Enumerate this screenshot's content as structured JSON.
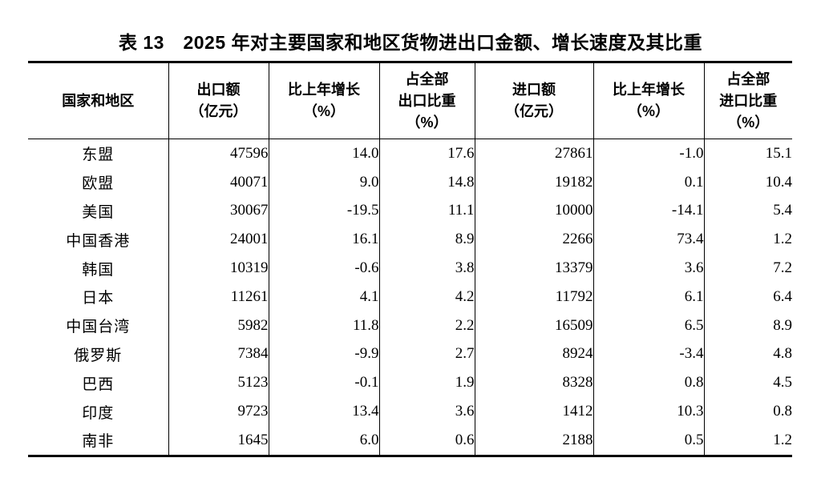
{
  "page": {
    "background_color": "#ffffff",
    "text_color": "#000000"
  },
  "title": "表 13　2025 年对主要国家和地区货物进出口金额、增长速度及其比重",
  "table": {
    "columns": [
      {
        "id": "region",
        "lines": [
          "国家和地区"
        ]
      },
      {
        "id": "export-value",
        "lines": [
          "出口额",
          "（亿元）"
        ]
      },
      {
        "id": "export-growth",
        "lines": [
          "比上年增长",
          "（%）"
        ]
      },
      {
        "id": "export-share",
        "lines": [
          "占全部",
          "出口比重",
          "（%）"
        ]
      },
      {
        "id": "import-value",
        "lines": [
          "进口额",
          "（亿元）"
        ]
      },
      {
        "id": "import-growth",
        "lines": [
          "比上年增长",
          "（%）"
        ]
      },
      {
        "id": "import-share",
        "lines": [
          "占全部",
          "进口比重",
          "（%）"
        ]
      }
    ],
    "rows": [
      {
        "region": "东盟",
        "values": [
          "47596",
          "14.0",
          "17.6",
          "27861",
          "-1.0",
          "15.1"
        ]
      },
      {
        "region": "欧盟",
        "values": [
          "40071",
          "9.0",
          "14.8",
          "19182",
          "0.1",
          "10.4"
        ]
      },
      {
        "region": "美国",
        "values": [
          "30067",
          "-19.5",
          "11.1",
          "10000",
          "-14.1",
          "5.4"
        ]
      },
      {
        "region": "中国香港",
        "values": [
          "24001",
          "16.1",
          "8.9",
          "2266",
          "73.4",
          "1.2"
        ]
      },
      {
        "region": "韩国",
        "values": [
          "10319",
          "-0.6",
          "3.8",
          "13379",
          "3.6",
          "7.2"
        ]
      },
      {
        "region": "日本",
        "values": [
          "11261",
          "4.1",
          "4.2",
          "11792",
          "6.1",
          "6.4"
        ]
      },
      {
        "region": "中国台湾",
        "values": [
          "5982",
          "11.8",
          "2.2",
          "16509",
          "6.5",
          "8.9"
        ]
      },
      {
        "region": "俄罗斯",
        "values": [
          "7384",
          "-9.9",
          "2.7",
          "8924",
          "-3.4",
          "4.8"
        ]
      },
      {
        "region": "巴西",
        "values": [
          "5123",
          "-0.1",
          "1.9",
          "8328",
          "0.8",
          "4.5"
        ]
      },
      {
        "region": "印度",
        "values": [
          "9723",
          "13.4",
          "3.6",
          "1412",
          "10.3",
          "0.8"
        ]
      },
      {
        "region": "南非",
        "values": [
          "1645",
          "6.0",
          "0.6",
          "2188",
          "0.5",
          "1.2"
        ]
      }
    ]
  },
  "chart_data": {
    "type": "table",
    "title": "表 13　2025 年对主要国家和地区货物进出口金额、增长速度及其比重",
    "columns": [
      "国家和地区",
      "出口额（亿元）",
      "比上年增长（%）",
      "占全部出口比重（%）",
      "进口额（亿元）",
      "比上年增长（%）",
      "占全部进口比重（%）"
    ],
    "rows": [
      [
        "东盟",
        47596,
        14.0,
        17.6,
        27861,
        -1.0,
        15.1
      ],
      [
        "欧盟",
        40071,
        9.0,
        14.8,
        19182,
        0.1,
        10.4
      ],
      [
        "美国",
        30067,
        -19.5,
        11.1,
        10000,
        -14.1,
        5.4
      ],
      [
        "中国香港",
        24001,
        16.1,
        8.9,
        2266,
        73.4,
        1.2
      ],
      [
        "韩国",
        10319,
        -0.6,
        3.8,
        13379,
        3.6,
        7.2
      ],
      [
        "日本",
        11261,
        4.1,
        4.2,
        11792,
        6.1,
        6.4
      ],
      [
        "中国台湾",
        5982,
        11.8,
        2.2,
        16509,
        6.5,
        8.9
      ],
      [
        "俄罗斯",
        7384,
        -9.9,
        2.7,
        8924,
        -3.4,
        4.8
      ],
      [
        "巴西",
        5123,
        -0.1,
        1.9,
        8328,
        0.8,
        4.5
      ],
      [
        "印度",
        9723,
        13.4,
        3.6,
        1412,
        10.3,
        0.8
      ],
      [
        "南非",
        1645,
        6.0,
        0.6,
        2188,
        0.5,
        1.2
      ]
    ]
  }
}
